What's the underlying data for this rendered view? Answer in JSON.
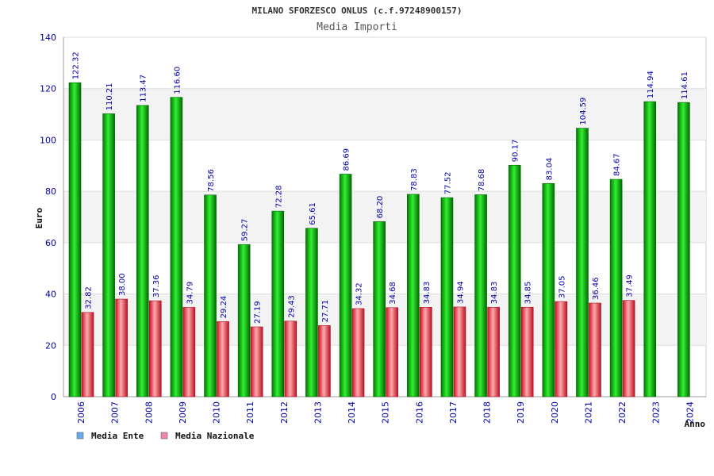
{
  "chart_data": {
    "type": "bar",
    "title": "MILANO SFORZESCO ONLUS (c.f.97248900157)",
    "subtitle": "Media Importi",
    "xlabel": "Anno",
    "ylabel": "Euro",
    "ylim": [
      0,
      140
    ],
    "yticks": [
      0,
      20,
      40,
      60,
      80,
      100,
      120,
      140
    ],
    "grid": true,
    "legend_position": "bottom-left",
    "categories": [
      "2006",
      "2007",
      "2008",
      "2009",
      "2010",
      "2011",
      "2012",
      "2013",
      "2014",
      "2015",
      "2016",
      "2017",
      "2018",
      "2019",
      "2020",
      "2021",
      "2022",
      "2023",
      "2024"
    ],
    "series": [
      {
        "name": "Media Ente",
        "color": "#00aa00",
        "legend_color": "#66aaee",
        "values": [
          122.32,
          110.21,
          113.47,
          116.6,
          78.56,
          59.27,
          72.28,
          65.61,
          86.69,
          68.2,
          78.83,
          77.52,
          78.68,
          90.17,
          83.04,
          104.59,
          84.67,
          114.94,
          114.61
        ],
        "labels": [
          "122.32",
          "110.21",
          "113.47",
          "116.60",
          "78.56",
          "59.27",
          "72.28",
          "65.61",
          "86.69",
          "68.20",
          "78.83",
          "77.52",
          "78.68",
          "90.17",
          "83.04",
          "104.59",
          "84.67",
          "114.94",
          "114.61"
        ]
      },
      {
        "name": "Media Nazionale",
        "color": "#dd2233",
        "legend_color": "#ee88aa",
        "values": [
          32.82,
          38.0,
          37.36,
          34.79,
          29.24,
          27.19,
          29.43,
          27.71,
          34.32,
          34.68,
          34.83,
          34.94,
          34.83,
          34.85,
          37.05,
          36.46,
          37.49,
          null,
          null
        ],
        "labels": [
          "32.82",
          "38.00",
          "37.36",
          "34.79",
          "29.24",
          "27.19",
          "29.43",
          "27.71",
          "34.32",
          "34.68",
          "34.83",
          "34.94",
          "34.83",
          "34.85",
          "37.05",
          "36.46",
          "37.49",
          null,
          null
        ]
      }
    ]
  }
}
